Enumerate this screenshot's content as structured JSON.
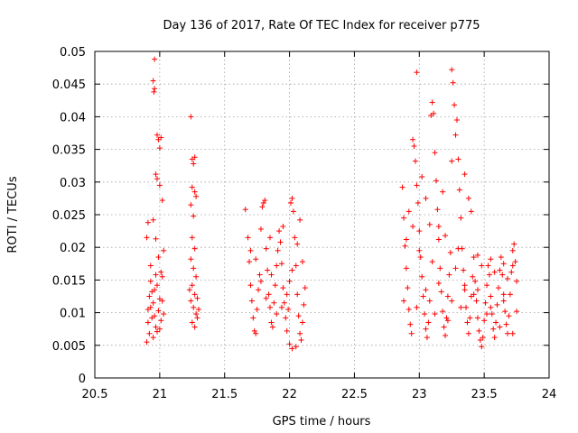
{
  "chart_data": {
    "type": "scatter",
    "title": "Day 136 of 2017, Rate Of TEC Index for receiver p775",
    "xlabel": "GPS time / hours",
    "ylabel": "ROTI / TECUs",
    "xlim": [
      20.5,
      24
    ],
    "ylim": [
      0,
      0.05
    ],
    "x_ticks": [
      20.5,
      21,
      21.5,
      22,
      22.5,
      23,
      23.5,
      24
    ],
    "x_tick_labels": [
      "20.5",
      "21",
      "21.5",
      "22",
      "22.5",
      "23",
      "23.5",
      "24"
    ],
    "y_ticks": [
      0,
      0.005,
      0.01,
      0.015,
      0.02,
      0.025,
      0.03,
      0.035,
      0.04,
      0.045,
      0.05
    ],
    "y_tick_labels": [
      "0",
      "0.005",
      "0.01",
      "0.015",
      "0.02",
      "0.025",
      "0.03",
      "0.035",
      "0.04",
      "0.045",
      "0.05"
    ],
    "grid": true,
    "marker": "+",
    "marker_color": "#ff0000",
    "series": [
      {
        "name": "ROTI",
        "points": [
          [
            20.9,
            0.0055
          ],
          [
            20.91,
            0.0105
          ],
          [
            20.92,
            0.0125
          ],
          [
            20.93,
            0.0148
          ],
          [
            20.94,
            0.0092
          ],
          [
            20.95,
            0.0115
          ],
          [
            20.96,
            0.0135
          ],
          [
            20.97,
            0.0078
          ],
          [
            20.98,
            0.0142
          ],
          [
            20.99,
            0.0103
          ],
          [
            21.0,
            0.0121
          ],
          [
            21.01,
            0.0088
          ],
          [
            21.02,
            0.0155
          ],
          [
            21.03,
            0.0098
          ],
          [
            20.9,
            0.0215
          ],
          [
            20.91,
            0.0238
          ],
          [
            20.93,
            0.0172
          ],
          [
            20.95,
            0.0242
          ],
          [
            20.97,
            0.0213
          ],
          [
            20.99,
            0.0185
          ],
          [
            21.01,
            0.0162
          ],
          [
            21.03,
            0.0195
          ],
          [
            20.96,
            0.0488
          ],
          [
            20.95,
            0.0455
          ],
          [
            20.955,
            0.0438
          ],
          [
            20.96,
            0.0443
          ],
          [
            20.98,
            0.0372
          ],
          [
            20.99,
            0.0365
          ],
          [
            21.0,
            0.0352
          ],
          [
            21.01,
            0.0368
          ],
          [
            20.97,
            0.0312
          ],
          [
            20.98,
            0.0305
          ],
          [
            21.0,
            0.0295
          ],
          [
            21.02,
            0.0272
          ],
          [
            20.92,
            0.0068
          ],
          [
            20.95,
            0.0062
          ],
          [
            20.98,
            0.0071
          ],
          [
            21.0,
            0.0075
          ],
          [
            20.91,
            0.0085
          ],
          [
            20.94,
            0.0132
          ],
          [
            20.97,
            0.0158
          ],
          [
            21.02,
            0.0118
          ],
          [
            20.93,
            0.0108
          ],
          [
            20.96,
            0.0095
          ],
          [
            21.24,
            0.04
          ],
          [
            21.25,
            0.0335
          ],
          [
            21.26,
            0.0328
          ],
          [
            21.27,
            0.0338
          ],
          [
            21.25,
            0.0292
          ],
          [
            21.27,
            0.0285
          ],
          [
            21.28,
            0.0278
          ],
          [
            21.24,
            0.0265
          ],
          [
            21.26,
            0.0248
          ],
          [
            21.25,
            0.0215
          ],
          [
            21.27,
            0.0198
          ],
          [
            21.24,
            0.0182
          ],
          [
            21.26,
            0.0168
          ],
          [
            21.28,
            0.0155
          ],
          [
            21.25,
            0.0142
          ],
          [
            21.27,
            0.0128
          ],
          [
            21.24,
            0.0118
          ],
          [
            21.26,
            0.0108
          ],
          [
            21.28,
            0.0098
          ],
          [
            21.25,
            0.0085
          ],
          [
            21.27,
            0.0078
          ],
          [
            21.29,
            0.0092
          ],
          [
            21.23,
            0.0135
          ],
          [
            21.29,
            0.0122
          ],
          [
            21.3,
            0.0105
          ],
          [
            21.66,
            0.0258
          ],
          [
            21.68,
            0.0215
          ],
          [
            21.69,
            0.0178
          ],
          [
            21.7,
            0.0142
          ],
          [
            21.71,
            0.0118
          ],
          [
            21.72,
            0.0092
          ],
          [
            21.73,
            0.0072
          ],
          [
            21.74,
            0.0068
          ],
          [
            21.75,
            0.0105
          ],
          [
            21.76,
            0.0135
          ],
          [
            21.77,
            0.0158
          ],
          [
            21.78,
            0.0228
          ],
          [
            21.79,
            0.0262
          ],
          [
            21.8,
            0.0268
          ],
          [
            21.81,
            0.0272
          ],
          [
            21.82,
            0.0198
          ],
          [
            21.83,
            0.0165
          ],
          [
            21.84,
            0.0128
          ],
          [
            21.85,
            0.0108
          ],
          [
            21.86,
            0.0085
          ],
          [
            21.87,
            0.0078
          ],
          [
            21.88,
            0.0115
          ],
          [
            21.89,
            0.0142
          ],
          [
            21.9,
            0.0172
          ],
          [
            21.91,
            0.0195
          ],
          [
            21.92,
            0.0225
          ],
          [
            21.93,
            0.0208
          ],
          [
            21.94,
            0.0175
          ],
          [
            21.95,
            0.0138
          ],
          [
            21.96,
            0.0115
          ],
          [
            21.97,
            0.0092
          ],
          [
            21.98,
            0.0072
          ],
          [
            21.99,
            0.0105
          ],
          [
            22.0,
            0.0148
          ],
          [
            22.01,
            0.0268
          ],
          [
            22.02,
            0.0275
          ],
          [
            22.03,
            0.0255
          ],
          [
            22.04,
            0.0215
          ],
          [
            22.05,
            0.0172
          ],
          [
            22.06,
            0.0128
          ],
          [
            22.07,
            0.0095
          ],
          [
            22.08,
            0.0068
          ],
          [
            22.09,
            0.0058
          ],
          [
            22.1,
            0.0085
          ],
          [
            22.11,
            0.0112
          ],
          [
            22.12,
            0.0138
          ],
          [
            21.7,
            0.0195
          ],
          [
            21.74,
            0.0182
          ],
          [
            21.78,
            0.0148
          ],
          [
            21.82,
            0.0122
          ],
          [
            21.86,
            0.0158
          ],
          [
            21.9,
            0.0098
          ],
          [
            21.94,
            0.0108
          ],
          [
            21.98,
            0.0128
          ],
          [
            22.02,
            0.0165
          ],
          [
            22.06,
            0.0205
          ],
          [
            22.1,
            0.0178
          ],
          [
            22.0,
            0.0052
          ],
          [
            22.02,
            0.0045
          ],
          [
            22.05,
            0.0048
          ],
          [
            21.85,
            0.0215
          ],
          [
            21.95,
            0.0232
          ],
          [
            22.08,
            0.0242
          ],
          [
            22.87,
            0.0292
          ],
          [
            22.88,
            0.0245
          ],
          [
            22.89,
            0.0202
          ],
          [
            22.9,
            0.0168
          ],
          [
            22.91,
            0.0138
          ],
          [
            22.92,
            0.0105
          ],
          [
            22.93,
            0.0082
          ],
          [
            22.94,
            0.0068
          ],
          [
            22.95,
            0.0365
          ],
          [
            22.96,
            0.0355
          ],
          [
            22.97,
            0.0332
          ],
          [
            22.98,
            0.0295
          ],
          [
            22.99,
            0.0268
          ],
          [
            23.0,
            0.0225
          ],
          [
            23.01,
            0.0185
          ],
          [
            23.02,
            0.0155
          ],
          [
            23.03,
            0.0125
          ],
          [
            23.04,
            0.0098
          ],
          [
            23.05,
            0.0075
          ],
          [
            23.06,
            0.0062
          ],
          [
            23.07,
            0.0085
          ],
          [
            23.08,
            0.0118
          ],
          [
            23.09,
            0.0402
          ],
          [
            23.1,
            0.0422
          ],
          [
            23.11,
            0.0405
          ],
          [
            23.12,
            0.0345
          ],
          [
            23.13,
            0.0302
          ],
          [
            23.14,
            0.0258
          ],
          [
            23.15,
            0.0212
          ],
          [
            23.16,
            0.0168
          ],
          [
            23.17,
            0.0132
          ],
          [
            23.18,
            0.0102
          ],
          [
            23.19,
            0.0078
          ],
          [
            23.2,
            0.0065
          ],
          [
            23.21,
            0.0092
          ],
          [
            23.22,
            0.0125
          ],
          [
            23.23,
            0.0158
          ],
          [
            23.24,
            0.0192
          ],
          [
            23.25,
            0.0332
          ],
          [
            23.26,
            0.0452
          ],
          [
            23.27,
            0.0418
          ],
          [
            23.28,
            0.0372
          ],
          [
            23.29,
            0.0395
          ],
          [
            23.3,
            0.0335
          ],
          [
            23.31,
            0.0288
          ],
          [
            23.32,
            0.0245
          ],
          [
            23.33,
            0.0198
          ],
          [
            23.34,
            0.0165
          ],
          [
            23.35,
            0.0135
          ],
          [
            23.36,
            0.0108
          ],
          [
            23.37,
            0.0085
          ],
          [
            23.38,
            0.0068
          ],
          [
            23.39,
            0.0092
          ],
          [
            23.4,
            0.0125
          ],
          [
            23.41,
            0.0155
          ],
          [
            23.42,
            0.0185
          ],
          [
            23.43,
            0.0148
          ],
          [
            23.44,
            0.0118
          ],
          [
            23.45,
            0.0092
          ],
          [
            23.46,
            0.0072
          ],
          [
            23.47,
            0.0058
          ],
          [
            23.48,
            0.0048
          ],
          [
            23.49,
            0.0062
          ],
          [
            23.5,
            0.0088
          ],
          [
            23.51,
            0.0115
          ],
          [
            23.52,
            0.0142
          ],
          [
            23.53,
            0.0172
          ],
          [
            23.54,
            0.0158
          ],
          [
            23.55,
            0.0125
          ],
          [
            23.56,
            0.0098
          ],
          [
            23.57,
            0.0075
          ],
          [
            23.58,
            0.0062
          ],
          [
            23.59,
            0.0085
          ],
          [
            23.6,
            0.0112
          ],
          [
            23.61,
            0.0138
          ],
          [
            23.62,
            0.0165
          ],
          [
            23.63,
            0.0185
          ],
          [
            23.64,
            0.0158
          ],
          [
            23.65,
            0.0128
          ],
          [
            23.66,
            0.0102
          ],
          [
            23.67,
            0.0082
          ],
          [
            23.68,
            0.0068
          ],
          [
            23.69,
            0.0095
          ],
          [
            23.7,
            0.0128
          ],
          [
            23.71,
            0.0162
          ],
          [
            23.72,
            0.0195
          ],
          [
            23.73,
            0.0205
          ],
          [
            23.74,
            0.0178
          ],
          [
            23.75,
            0.0148
          ],
          [
            22.98,
            0.0468
          ],
          [
            23.25,
            0.0472
          ],
          [
            23.02,
            0.0308
          ],
          [
            23.05,
            0.0275
          ],
          [
            23.18,
            0.0285
          ],
          [
            23.35,
            0.0312
          ],
          [
            23.38,
            0.0275
          ],
          [
            23.4,
            0.0255
          ],
          [
            22.92,
            0.0255
          ],
          [
            22.95,
            0.0232
          ],
          [
            23.08,
            0.0235
          ],
          [
            23.15,
            0.0232
          ],
          [
            23.2,
            0.0218
          ],
          [
            23.3,
            0.0198
          ],
          [
            23.45,
            0.0188
          ],
          [
            23.55,
            0.0182
          ],
          [
            23.65,
            0.0175
          ],
          [
            23.72,
            0.0172
          ],
          [
            22.9,
            0.0212
          ],
          [
            23.0,
            0.0195
          ],
          [
            23.1,
            0.0178
          ],
          [
            23.28,
            0.0168
          ],
          [
            23.48,
            0.0172
          ],
          [
            23.58,
            0.0162
          ],
          [
            23.68,
            0.0152
          ],
          [
            22.88,
            0.0118
          ],
          [
            22.98,
            0.0108
          ],
          [
            23.12,
            0.0098
          ],
          [
            23.22,
            0.0088
          ],
          [
            23.32,
            0.0108
          ],
          [
            23.42,
            0.0128
          ],
          [
            23.52,
            0.0098
          ],
          [
            23.62,
            0.0078
          ],
          [
            23.72,
            0.0068
          ],
          [
            23.05,
            0.0135
          ],
          [
            23.15,
            0.0145
          ],
          [
            23.25,
            0.0118
          ],
          [
            23.35,
            0.0142
          ],
          [
            23.45,
            0.0135
          ],
          [
            23.55,
            0.0108
          ],
          [
            23.65,
            0.0118
          ],
          [
            23.75,
            0.0102
          ]
        ]
      }
    ]
  }
}
